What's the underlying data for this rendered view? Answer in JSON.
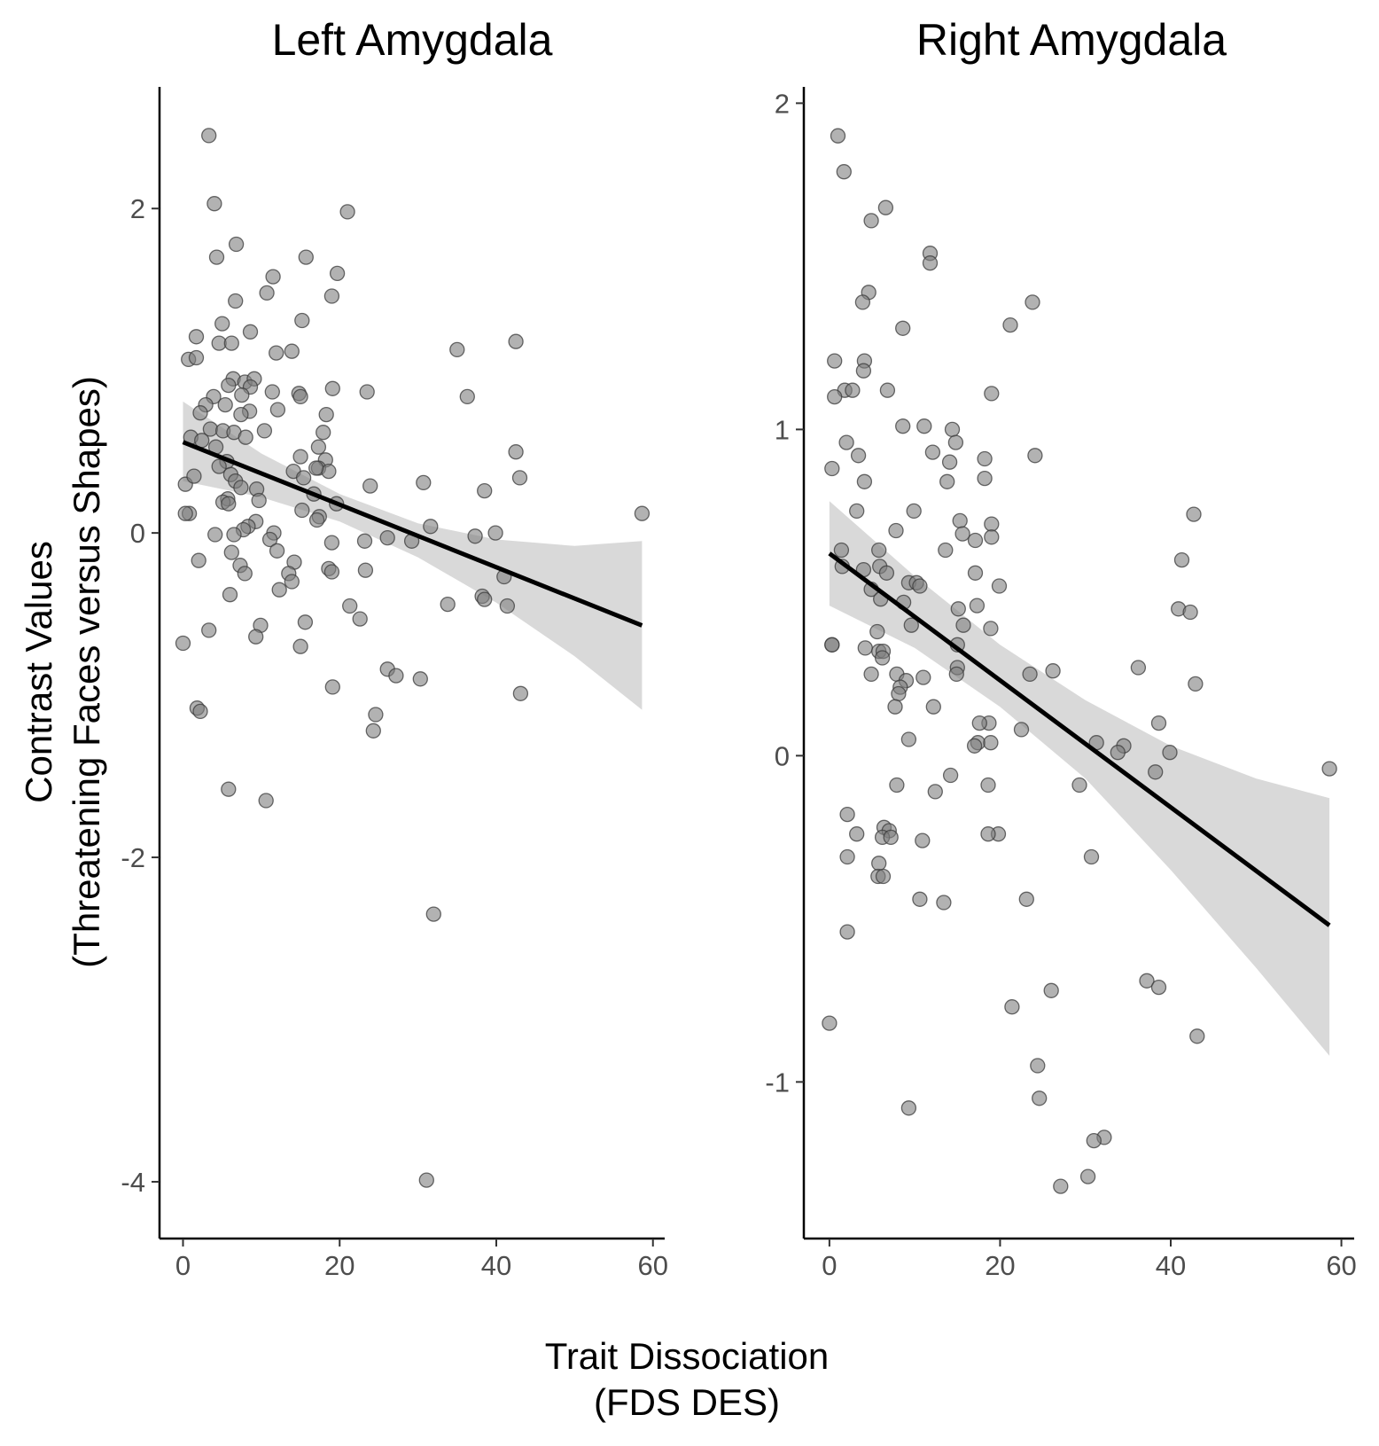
{
  "figure": {
    "xlabel_line1": "Trait Dissociation",
    "xlabel_line2": "(FDS DES)",
    "ylabel_line1": "Contrast Values",
    "ylabel_line2": "(Threatening Faces versus Shapes)"
  },
  "chart_data": [
    {
      "type": "scatter",
      "title": "Left Amygdala",
      "xlabel": "Trait Dissociation (FDS DES)",
      "ylabel": "Contrast Values (Threatening Faces versus Shapes)",
      "xlim": [
        -3,
        61.5
      ],
      "ylim": [
        -4.35,
        2.75
      ],
      "x_ticks": [
        0,
        20,
        40,
        60
      ],
      "x_tick_labels": [
        "0",
        "20",
        "40",
        "60"
      ],
      "y_ticks": [
        2,
        0,
        -2,
        -4
      ],
      "y_tick_labels": [
        "2",
        "0",
        "-2",
        "-4"
      ],
      "grid": false,
      "fit": {
        "x": [
          0,
          58.6
        ],
        "y": [
          0.56,
          -0.57
        ]
      },
      "ribbon": {
        "x": [
          0,
          10,
          20,
          30,
          40,
          50,
          58.6
        ],
        "lower": [
          0.32,
          0.22,
          0.07,
          -0.15,
          -0.43,
          -0.76,
          -1.09
        ],
        "upper": [
          0.81,
          0.49,
          0.24,
          0.06,
          -0.04,
          -0.08,
          -0.05
        ]
      },
      "points": [
        [
          3.3,
          2.45
        ],
        [
          4.0,
          2.03
        ],
        [
          21.0,
          1.98
        ],
        [
          6.8,
          1.78
        ],
        [
          4.3,
          1.7
        ],
        [
          15.7,
          1.7
        ],
        [
          11.5,
          1.58
        ],
        [
          19.7,
          1.6
        ],
        [
          10.7,
          1.48
        ],
        [
          19.0,
          1.46
        ],
        [
          6.7,
          1.43
        ],
        [
          15.2,
          1.31
        ],
        [
          5.0,
          1.29
        ],
        [
          8.6,
          1.24
        ],
        [
          1.7,
          1.21
        ],
        [
          4.6,
          1.17
        ],
        [
          6.2,
          1.17
        ],
        [
          11.9,
          1.11
        ],
        [
          13.9,
          1.12
        ],
        [
          35.0,
          1.13
        ],
        [
          42.5,
          1.18
        ],
        [
          0.7,
          1.07
        ],
        [
          1.7,
          1.08
        ],
        [
          6.4,
          0.95
        ],
        [
          7.9,
          0.93
        ],
        [
          9.1,
          0.95
        ],
        [
          5.8,
          0.91
        ],
        [
          8.6,
          0.9
        ],
        [
          11.4,
          0.87
        ],
        [
          14.8,
          0.86
        ],
        [
          15.0,
          0.84
        ],
        [
          19.1,
          0.89
        ],
        [
          23.5,
          0.87
        ],
        [
          36.3,
          0.84
        ],
        [
          3.9,
          0.84
        ],
        [
          7.5,
          0.85
        ],
        [
          2.9,
          0.79
        ],
        [
          5.4,
          0.79
        ],
        [
          8.5,
          0.75
        ],
        [
          12.1,
          0.76
        ],
        [
          18.3,
          0.73
        ],
        [
          7.4,
          0.73
        ],
        [
          2.2,
          0.74
        ],
        [
          10.4,
          0.63
        ],
        [
          17.9,
          0.62
        ],
        [
          3.5,
          0.64
        ],
        [
          5.1,
          0.63
        ],
        [
          6.5,
          0.62
        ],
        [
          1.0,
          0.59
        ],
        [
          8.0,
          0.59
        ],
        [
          2.4,
          0.57
        ],
        [
          4.2,
          0.53
        ],
        [
          17.3,
          0.53
        ],
        [
          42.5,
          0.5
        ],
        [
          15.0,
          0.47
        ],
        [
          18.2,
          0.45
        ],
        [
          5.6,
          0.44
        ],
        [
          0.3,
          0.3
        ],
        [
          1.4,
          0.35
        ],
        [
          4.6,
          0.41
        ],
        [
          17.3,
          0.4
        ],
        [
          18.6,
          0.38
        ],
        [
          6.1,
          0.36
        ],
        [
          6.7,
          0.32
        ],
        [
          14.1,
          0.38
        ],
        [
          15.4,
          0.34
        ],
        [
          17.0,
          0.4
        ],
        [
          43.0,
          0.34
        ],
        [
          30.7,
          0.31
        ],
        [
          23.9,
          0.29
        ],
        [
          7.4,
          0.28
        ],
        [
          9.4,
          0.27
        ],
        [
          16.7,
          0.24
        ],
        [
          38.5,
          0.26
        ],
        [
          5.7,
          0.21
        ],
        [
          5.1,
          0.19
        ],
        [
          9.7,
          0.2
        ],
        [
          5.8,
          0.18
        ],
        [
          19.6,
          0.18
        ],
        [
          15.2,
          0.14
        ],
        [
          17.4,
          0.1
        ],
        [
          0.8,
          0.12
        ],
        [
          0.3,
          0.12
        ],
        [
          58.6,
          0.12
        ],
        [
          9.3,
          0.07
        ],
        [
          17.1,
          0.08
        ],
        [
          8.3,
          0.04
        ],
        [
          7.7,
          0.02
        ],
        [
          11.6,
          0.0
        ],
        [
          4.1,
          -0.01
        ],
        [
          6.5,
          -0.01
        ],
        [
          31.6,
          0.04
        ],
        [
          39.9,
          0.0
        ],
        [
          37.3,
          -0.02
        ],
        [
          26.1,
          -0.03
        ],
        [
          29.2,
          -0.05
        ],
        [
          23.2,
          -0.05
        ],
        [
          11.1,
          -0.04
        ],
        [
          19.0,
          -0.06
        ],
        [
          6.2,
          -0.12
        ],
        [
          12.0,
          -0.11
        ],
        [
          2.0,
          -0.17
        ],
        [
          7.3,
          -0.2
        ],
        [
          14.2,
          -0.18
        ],
        [
          7.9,
          -0.25
        ],
        [
          18.6,
          -0.22
        ],
        [
          13.5,
          -0.25
        ],
        [
          19.0,
          -0.24
        ],
        [
          23.3,
          -0.23
        ],
        [
          41.0,
          -0.27
        ],
        [
          13.9,
          -0.3
        ],
        [
          6.0,
          -0.38
        ],
        [
          12.3,
          -0.35
        ],
        [
          38.2,
          -0.39
        ],
        [
          38.5,
          -0.41
        ],
        [
          33.8,
          -0.44
        ],
        [
          21.3,
          -0.45
        ],
        [
          41.4,
          -0.45
        ],
        [
          22.6,
          -0.53
        ],
        [
          15.6,
          -0.55
        ],
        [
          3.3,
          -0.6
        ],
        [
          9.9,
          -0.57
        ],
        [
          9.3,
          -0.64
        ],
        [
          0.0,
          -0.68
        ],
        [
          15.0,
          -0.7
        ],
        [
          26.1,
          -0.84
        ],
        [
          27.2,
          -0.88
        ],
        [
          30.3,
          -0.9
        ],
        [
          19.1,
          -0.95
        ],
        [
          43.1,
          -0.99
        ],
        [
          1.8,
          -1.08
        ],
        [
          2.2,
          -1.1
        ],
        [
          24.6,
          -1.12
        ],
        [
          24.3,
          -1.22
        ],
        [
          5.8,
          -1.58
        ],
        [
          10.6,
          -1.65
        ],
        [
          32.0,
          -2.35
        ],
        [
          31.1,
          -3.99
        ]
      ]
    },
    {
      "type": "scatter",
      "title": "Right Amygdala",
      "xlabel": "Trait Dissociation (FDS DES)",
      "ylabel": "Contrast Values (Threatening Faces versus Shapes)",
      "xlim": [
        -3,
        61.5
      ],
      "ylim": [
        -1.48,
        2.05
      ],
      "x_ticks": [
        0,
        20,
        40,
        60
      ],
      "x_tick_labels": [
        "0",
        "20",
        "40",
        "60"
      ],
      "y_ticks": [
        2,
        1,
        0,
        -1
      ],
      "y_tick_labels": [
        "2",
        "1",
        "0",
        "-1"
      ],
      "grid": false,
      "fit": {
        "x": [
          0,
          58.6
        ],
        "y": [
          0.62,
          -0.52
        ]
      },
      "ribbon": {
        "x": [
          0,
          10,
          20,
          30,
          40,
          50,
          58.6
        ],
        "lower": [
          0.46,
          0.33,
          0.15,
          -0.07,
          -0.35,
          -0.65,
          -0.92
        ],
        "upper": [
          0.78,
          0.55,
          0.34,
          0.17,
          0.03,
          -0.07,
          -0.13
        ]
      },
      "points": [
        [
          1.0,
          1.9
        ],
        [
          1.7,
          1.79
        ],
        [
          6.6,
          1.68
        ],
        [
          4.9,
          1.64
        ],
        [
          11.8,
          1.54
        ],
        [
          11.8,
          1.51
        ],
        [
          4.6,
          1.42
        ],
        [
          3.9,
          1.39
        ],
        [
          23.8,
          1.39
        ],
        [
          8.6,
          1.31
        ],
        [
          21.2,
          1.32
        ],
        [
          0.6,
          1.21
        ],
        [
          4.1,
          1.21
        ],
        [
          4.0,
          1.18
        ],
        [
          6.8,
          1.12
        ],
        [
          1.8,
          1.12
        ],
        [
          2.7,
          1.12
        ],
        [
          0.6,
          1.1
        ],
        [
          19.0,
          1.11
        ],
        [
          8.6,
          1.01
        ],
        [
          11.1,
          1.01
        ],
        [
          14.4,
          1.0
        ],
        [
          14.8,
          0.96
        ],
        [
          2.0,
          0.96
        ],
        [
          12.1,
          0.93
        ],
        [
          3.4,
          0.92
        ],
        [
          24.1,
          0.92
        ],
        [
          18.2,
          0.91
        ],
        [
          14.1,
          0.9
        ],
        [
          0.3,
          0.88
        ],
        [
          18.2,
          0.85
        ],
        [
          4.1,
          0.84
        ],
        [
          13.8,
          0.84
        ],
        [
          3.2,
          0.75
        ],
        [
          9.9,
          0.75
        ],
        [
          42.7,
          0.74
        ],
        [
          15.3,
          0.72
        ],
        [
          19.0,
          0.71
        ],
        [
          7.8,
          0.69
        ],
        [
          15.6,
          0.68
        ],
        [
          19.0,
          0.67
        ],
        [
          17.1,
          0.66
        ],
        [
          13.6,
          0.63
        ],
        [
          1.4,
          0.63
        ],
        [
          5.8,
          0.63
        ],
        [
          41.3,
          0.6
        ],
        [
          1.5,
          0.58
        ],
        [
          4.0,
          0.57
        ],
        [
          5.9,
          0.58
        ],
        [
          6.7,
          0.56
        ],
        [
          17.1,
          0.56
        ],
        [
          9.3,
          0.53
        ],
        [
          10.2,
          0.53
        ],
        [
          10.6,
          0.52
        ],
        [
          19.9,
          0.52
        ],
        [
          4.9,
          0.51
        ],
        [
          6.0,
          0.48
        ],
        [
          8.7,
          0.47
        ],
        [
          17.3,
          0.46
        ],
        [
          15.1,
          0.45
        ],
        [
          40.9,
          0.45
        ],
        [
          42.3,
          0.44
        ],
        [
          9.6,
          0.4
        ],
        [
          15.7,
          0.4
        ],
        [
          18.9,
          0.39
        ],
        [
          5.6,
          0.38
        ],
        [
          15.0,
          0.34
        ],
        [
          0.3,
          0.34
        ],
        [
          0.3,
          0.34
        ],
        [
          4.2,
          0.33
        ],
        [
          5.8,
          0.32
        ],
        [
          6.3,
          0.32
        ],
        [
          6.2,
          0.3
        ],
        [
          15.0,
          0.27
        ],
        [
          26.2,
          0.26
        ],
        [
          36.2,
          0.27
        ],
        [
          4.9,
          0.25
        ],
        [
          7.9,
          0.25
        ],
        [
          11.0,
          0.24
        ],
        [
          14.9,
          0.25
        ],
        [
          23.5,
          0.25
        ],
        [
          9.0,
          0.23
        ],
        [
          42.9,
          0.22
        ],
        [
          8.3,
          0.21
        ],
        [
          8.1,
          0.19
        ],
        [
          7.7,
          0.15
        ],
        [
          12.2,
          0.15
        ],
        [
          18.7,
          0.1
        ],
        [
          17.6,
          0.1
        ],
        [
          38.6,
          0.1
        ],
        [
          22.5,
          0.08
        ],
        [
          31.3,
          0.04
        ],
        [
          34.5,
          0.03
        ],
        [
          9.3,
          0.05
        ],
        [
          17.4,
          0.04
        ],
        [
          17.0,
          0.03
        ],
        [
          18.9,
          0.04
        ],
        [
          33.8,
          0.01
        ],
        [
          39.9,
          0.01
        ],
        [
          38.2,
          -0.05
        ],
        [
          58.6,
          -0.04
        ],
        [
          29.3,
          -0.09
        ],
        [
          7.9,
          -0.09
        ],
        [
          18.6,
          -0.09
        ],
        [
          14.2,
          -0.06
        ],
        [
          12.4,
          -0.11
        ],
        [
          2.1,
          -0.18
        ],
        [
          6.4,
          -0.22
        ],
        [
          7.0,
          -0.23
        ],
        [
          3.2,
          -0.24
        ],
        [
          6.2,
          -0.25
        ],
        [
          19.8,
          -0.24
        ],
        [
          18.6,
          -0.24
        ],
        [
          7.2,
          -0.25
        ],
        [
          10.9,
          -0.26
        ],
        [
          2.1,
          -0.31
        ],
        [
          5.8,
          -0.33
        ],
        [
          30.7,
          -0.31
        ],
        [
          5.7,
          -0.37
        ],
        [
          6.3,
          -0.37
        ],
        [
          23.1,
          -0.44
        ],
        [
          10.6,
          -0.44
        ],
        [
          13.4,
          -0.45
        ],
        [
          2.1,
          -0.54
        ],
        [
          26.0,
          -0.72
        ],
        [
          37.2,
          -0.69
        ],
        [
          38.6,
          -0.71
        ],
        [
          0.0,
          -0.82
        ],
        [
          21.4,
          -0.77
        ],
        [
          43.1,
          -0.86
        ],
        [
          24.4,
          -0.95
        ],
        [
          24.6,
          -1.05
        ],
        [
          9.3,
          -1.08
        ],
        [
          32.2,
          -1.17
        ],
        [
          31.0,
          -1.18
        ],
        [
          30.3,
          -1.29
        ],
        [
          27.1,
          -1.32
        ]
      ]
    }
  ]
}
